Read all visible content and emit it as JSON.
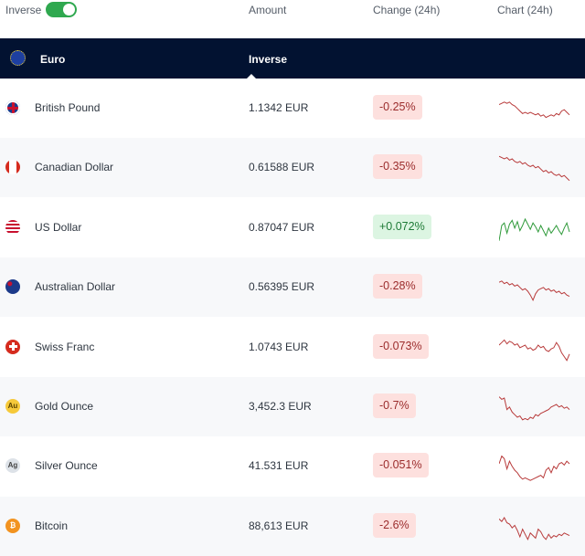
{
  "header": {
    "inverse_label": "Inverse",
    "inverse_on": true,
    "amount": "Amount",
    "change": "Change (24h)",
    "chart": "Chart (24h)"
  },
  "base": {
    "name": "Euro",
    "mode": "Inverse"
  },
  "colors": {
    "negative": "#b83a3a",
    "positive": "#2f9a3a",
    "band": "#021231"
  },
  "rows": [
    {
      "name": "British Pound",
      "flag": "gb-flag",
      "amount": "1.1342 EUR",
      "change": "-0.25%",
      "dir": "neg",
      "spark": [
        9,
        8,
        7,
        8,
        7,
        9,
        10,
        12,
        14,
        16,
        15,
        16,
        15,
        16,
        17,
        16,
        18,
        17,
        19,
        18,
        17,
        18,
        16,
        17,
        14,
        13,
        15,
        17
      ]
    },
    {
      "name": "Canadian Dollar",
      "flag": "ca-flag",
      "amount": "0.61588 EUR",
      "change": "-0.35%",
      "dir": "neg",
      "spark": [
        3,
        4,
        5,
        4,
        6,
        5,
        7,
        8,
        7,
        9,
        8,
        10,
        11,
        10,
        12,
        11,
        13,
        15,
        14,
        16,
        15,
        17,
        18,
        17,
        19,
        18,
        20,
        22
      ]
    },
    {
      "name": "US Dollar",
      "flag": "us-flag",
      "amount": "0.87047 EUR",
      "change": "+0.072%",
      "dir": "pos",
      "spark": [
        22,
        10,
        8,
        16,
        9,
        6,
        12,
        7,
        14,
        10,
        5,
        9,
        13,
        8,
        11,
        15,
        10,
        14,
        18,
        12,
        16,
        13,
        10,
        14,
        17,
        12,
        8,
        15
      ]
    },
    {
      "name": "Australian Dollar",
      "flag": "au-flag",
      "amount": "0.56395 EUR",
      "change": "-0.28%",
      "dir": "neg",
      "spark": [
        8,
        7,
        9,
        8,
        10,
        9,
        11,
        10,
        12,
        14,
        13,
        15,
        18,
        22,
        17,
        14,
        13,
        12,
        14,
        13,
        15,
        14,
        16,
        15,
        17,
        16,
        18,
        19
      ]
    },
    {
      "name": "Swiss Franc",
      "flag": "ch-flag",
      "amount": "1.0743 EUR",
      "change": "-0.073%",
      "dir": "neg",
      "spark": [
        10,
        8,
        6,
        9,
        7,
        8,
        10,
        9,
        12,
        11,
        10,
        13,
        12,
        14,
        13,
        10,
        12,
        11,
        14,
        15,
        13,
        12,
        8,
        11,
        16,
        19,
        22,
        17
      ]
    },
    {
      "name": "Gold Ounce",
      "flag": "au-badge",
      "flag_text": "Au",
      "amount": "3,452.3 EUR",
      "change": "-0.7%",
      "dir": "neg",
      "spark": [
        4,
        6,
        5,
        14,
        12,
        16,
        18,
        20,
        19,
        22,
        21,
        22,
        20,
        21,
        18,
        19,
        17,
        16,
        15,
        14,
        12,
        11,
        10,
        12,
        11,
        13,
        12,
        14
      ]
    },
    {
      "name": "Silver Ounce",
      "flag": "ag-badge",
      "flag_text": "Ag",
      "amount": "41.531 EUR",
      "change": "-0.051%",
      "dir": "neg",
      "spark": [
        10,
        4,
        6,
        14,
        8,
        12,
        15,
        17,
        20,
        22,
        21,
        22,
        23,
        22,
        21,
        20,
        19,
        21,
        15,
        13,
        17,
        12,
        14,
        10,
        9,
        11,
        8,
        10
      ]
    },
    {
      "name": "Bitcoin",
      "flag": "btc-badge",
      "flag_text": "₿",
      "amount": "88,613 EUR",
      "change": "-2.6%",
      "dir": "neg",
      "spark": [
        6,
        8,
        5,
        9,
        10,
        13,
        11,
        15,
        20,
        14,
        18,
        22,
        17,
        19,
        21,
        14,
        16,
        20,
        22,
        18,
        21,
        19,
        20,
        18,
        19,
        17,
        18,
        19
      ]
    }
  ]
}
